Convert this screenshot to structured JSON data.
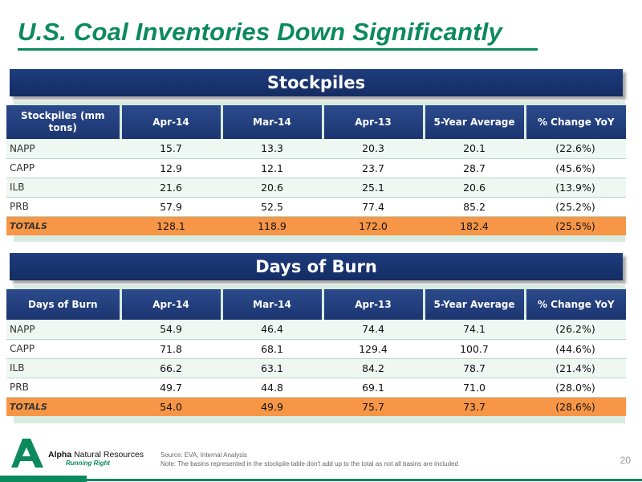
{
  "slide": {
    "title": "U.S. Coal Inventories Down Significantly",
    "page_number": "20"
  },
  "stockpiles": {
    "heading": "Stockpiles",
    "columns": [
      "Stockpiles (mm tons)",
      "Apr-14",
      "Mar-14",
      "Apr-13",
      "5-Year Average",
      "% Change YoY"
    ],
    "rows": [
      {
        "label": "NAPP",
        "values": [
          "15.7",
          "13.3",
          "20.3",
          "20.1",
          "(22.6%)"
        ]
      },
      {
        "label": "CAPP",
        "values": [
          "12.9",
          "12.1",
          "23.7",
          "28.7",
          "(45.6%)"
        ]
      },
      {
        "label": "ILB",
        "values": [
          "21.6",
          "20.6",
          "25.1",
          "20.6",
          "(13.9%)"
        ]
      },
      {
        "label": "PRB",
        "values": [
          "57.9",
          "52.5",
          "77.4",
          "85.2",
          "(25.2%)"
        ]
      }
    ],
    "totals": {
      "label": "TOTALS",
      "values": [
        "128.1",
        "118.9",
        "172.0",
        "182.4",
        "(25.5%)"
      ]
    }
  },
  "days_of_burn": {
    "heading": "Days of Burn",
    "columns": [
      "Days of Burn",
      "Apr-14",
      "Mar-14",
      "Apr-13",
      "5-Year Average",
      "% Change YoY"
    ],
    "rows": [
      {
        "label": "NAPP",
        "values": [
          "54.9",
          "46.4",
          "74.4",
          "74.1",
          "(26.2%)"
        ]
      },
      {
        "label": "CAPP",
        "values": [
          "71.8",
          "68.1",
          "129.4",
          "100.7",
          "(44.6%)"
        ]
      },
      {
        "label": "ILB",
        "values": [
          "66.2",
          "63.1",
          "84.2",
          "78.7",
          "(21.4%)"
        ]
      },
      {
        "label": "PRB",
        "values": [
          "49.7",
          "44.8",
          "69.1",
          "71.0",
          "(28.0%)"
        ]
      }
    ],
    "totals": {
      "label": "TOTALS",
      "values": [
        "54.0",
        "49.9",
        "75.7",
        "73.7",
        "(28.6%)"
      ]
    }
  },
  "footer": {
    "logo_name_bold": "Alpha",
    "logo_name_rest": "Natural Resources",
    "logo_tagline": "Running Right",
    "source": "Source: EVA, Internal Analysis",
    "note": "Note: The basins represented in the stockpile table don't add up to the total as not all basins are included"
  },
  "colors": {
    "brand_green": "#0b8a5d",
    "header_navy": "#1b3570",
    "totals_orange": "#f79646",
    "panel_mint": "#d7ecdf"
  }
}
